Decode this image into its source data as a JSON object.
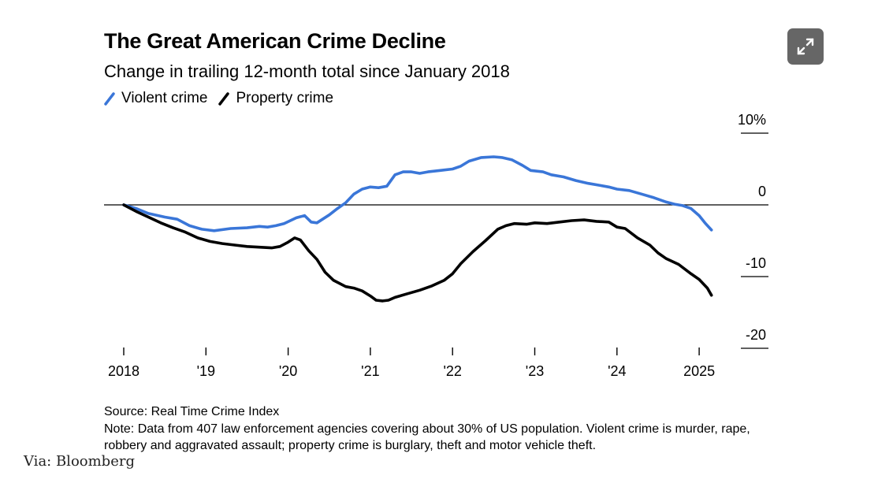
{
  "header": {
    "title": "The Great American Crime Decline",
    "subtitle": "Change in trailing 12-month total since January 2018"
  },
  "legend": {
    "items": [
      {
        "label": "Violent crime",
        "color": "#3a76d8"
      },
      {
        "label": "Property crime",
        "color": "#000000"
      }
    ]
  },
  "toolbar": {
    "expand_icon": "expand-arrows-icon"
  },
  "footer": {
    "source": "Source: Real Time Crime Index",
    "note": "Note: Data from 407 law enforcement agencies covering about 30% of US population. Violent crime is murder, rape, robbery and aggravated assault; property crime is burglary, theft and motor vehicle theft.",
    "via": "Via: Bloomberg"
  },
  "chart_data": {
    "type": "line",
    "title": "The Great American Crime Decline",
    "subtitle": "Change in trailing 12-month total since January 2018",
    "xlabel": "",
    "ylabel": "",
    "xlim": [
      2018.0,
      2025.3
    ],
    "ylim": [
      -20,
      10
    ],
    "y_unit": "%",
    "y_ticks": [
      10,
      0,
      -10,
      -20
    ],
    "y_tick_labels": [
      "10%",
      "0",
      "-10",
      "-20"
    ],
    "x_ticks": [
      2018,
      2019,
      2020,
      2021,
      2022,
      2023,
      2024,
      2025
    ],
    "x_tick_labels": [
      "2018",
      "'19",
      "'20",
      "'21",
      "'22",
      "'23",
      "'24",
      "2025"
    ],
    "zero_line": true,
    "grid": false,
    "legend_position": "top-left",
    "series": [
      {
        "name": "Violent crime",
        "color": "#3a76d8",
        "points": [
          [
            2018.0,
            0.0
          ],
          [
            2018.15,
            -0.5
          ],
          [
            2018.3,
            -1.2
          ],
          [
            2018.5,
            -1.7
          ],
          [
            2018.65,
            -2.0
          ],
          [
            2018.8,
            -2.9
          ],
          [
            2018.95,
            -3.4
          ],
          [
            2019.1,
            -3.6
          ],
          [
            2019.3,
            -3.3
          ],
          [
            2019.5,
            -3.2
          ],
          [
            2019.65,
            -3.0
          ],
          [
            2019.75,
            -3.1
          ],
          [
            2019.85,
            -2.9
          ],
          [
            2019.95,
            -2.6
          ],
          [
            2020.1,
            -1.8
          ],
          [
            2020.2,
            -1.5
          ],
          [
            2020.28,
            -2.4
          ],
          [
            2020.35,
            -2.5
          ],
          [
            2020.5,
            -1.4
          ],
          [
            2020.6,
            -0.5
          ],
          [
            2020.7,
            0.3
          ],
          [
            2020.8,
            1.5
          ],
          [
            2020.9,
            2.2
          ],
          [
            2021.0,
            2.5
          ],
          [
            2021.1,
            2.4
          ],
          [
            2021.2,
            2.6
          ],
          [
            2021.3,
            4.2
          ],
          [
            2021.4,
            4.6
          ],
          [
            2021.5,
            4.6
          ],
          [
            2021.6,
            4.4
          ],
          [
            2021.7,
            4.6
          ],
          [
            2021.85,
            4.8
          ],
          [
            2022.0,
            5.0
          ],
          [
            2022.1,
            5.4
          ],
          [
            2022.2,
            6.1
          ],
          [
            2022.35,
            6.6
          ],
          [
            2022.5,
            6.7
          ],
          [
            2022.6,
            6.6
          ],
          [
            2022.72,
            6.3
          ],
          [
            2022.85,
            5.5
          ],
          [
            2022.95,
            4.8
          ],
          [
            2023.1,
            4.6
          ],
          [
            2023.2,
            4.2
          ],
          [
            2023.35,
            3.9
          ],
          [
            2023.5,
            3.4
          ],
          [
            2023.65,
            3.0
          ],
          [
            2023.8,
            2.7
          ],
          [
            2023.9,
            2.5
          ],
          [
            2024.0,
            2.2
          ],
          [
            2024.15,
            2.0
          ],
          [
            2024.3,
            1.5
          ],
          [
            2024.45,
            1.0
          ],
          [
            2024.6,
            0.4
          ],
          [
            2024.7,
            0.1
          ],
          [
            2024.8,
            -0.1
          ],
          [
            2024.9,
            -0.5
          ],
          [
            2025.0,
            -1.5
          ],
          [
            2025.07,
            -2.5
          ],
          [
            2025.15,
            -3.5
          ]
        ]
      },
      {
        "name": "Property crime",
        "color": "#000000",
        "points": [
          [
            2018.0,
            0.0
          ],
          [
            2018.15,
            -0.9
          ],
          [
            2018.3,
            -1.7
          ],
          [
            2018.45,
            -2.5
          ],
          [
            2018.6,
            -3.2
          ],
          [
            2018.75,
            -3.8
          ],
          [
            2018.9,
            -4.6
          ],
          [
            2019.05,
            -5.1
          ],
          [
            2019.2,
            -5.4
          ],
          [
            2019.35,
            -5.6
          ],
          [
            2019.5,
            -5.8
          ],
          [
            2019.65,
            -5.9
          ],
          [
            2019.8,
            -6.0
          ],
          [
            2019.9,
            -5.8
          ],
          [
            2020.0,
            -5.2
          ],
          [
            2020.08,
            -4.6
          ],
          [
            2020.15,
            -4.9
          ],
          [
            2020.25,
            -6.4
          ],
          [
            2020.35,
            -7.6
          ],
          [
            2020.45,
            -9.4
          ],
          [
            2020.55,
            -10.5
          ],
          [
            2020.7,
            -11.4
          ],
          [
            2020.8,
            -11.6
          ],
          [
            2020.9,
            -12.0
          ],
          [
            2021.0,
            -12.7
          ],
          [
            2021.07,
            -13.3
          ],
          [
            2021.15,
            -13.4
          ],
          [
            2021.22,
            -13.3
          ],
          [
            2021.3,
            -12.9
          ],
          [
            2021.45,
            -12.4
          ],
          [
            2021.6,
            -11.9
          ],
          [
            2021.75,
            -11.3
          ],
          [
            2021.9,
            -10.5
          ],
          [
            2022.0,
            -9.6
          ],
          [
            2022.1,
            -8.2
          ],
          [
            2022.25,
            -6.5
          ],
          [
            2022.4,
            -5.0
          ],
          [
            2022.55,
            -3.4
          ],
          [
            2022.65,
            -2.9
          ],
          [
            2022.75,
            -2.6
          ],
          [
            2022.9,
            -2.7
          ],
          [
            2023.0,
            -2.5
          ],
          [
            2023.15,
            -2.6
          ],
          [
            2023.3,
            -2.4
          ],
          [
            2023.45,
            -2.2
          ],
          [
            2023.6,
            -2.1
          ],
          [
            2023.75,
            -2.3
          ],
          [
            2023.9,
            -2.4
          ],
          [
            2024.0,
            -3.1
          ],
          [
            2024.1,
            -3.3
          ],
          [
            2024.25,
            -4.6
          ],
          [
            2024.4,
            -5.6
          ],
          [
            2024.5,
            -6.7
          ],
          [
            2024.6,
            -7.5
          ],
          [
            2024.75,
            -8.3
          ],
          [
            2024.9,
            -9.6
          ],
          [
            2025.0,
            -10.4
          ],
          [
            2025.1,
            -11.6
          ],
          [
            2025.15,
            -12.6
          ]
        ]
      }
    ]
  }
}
